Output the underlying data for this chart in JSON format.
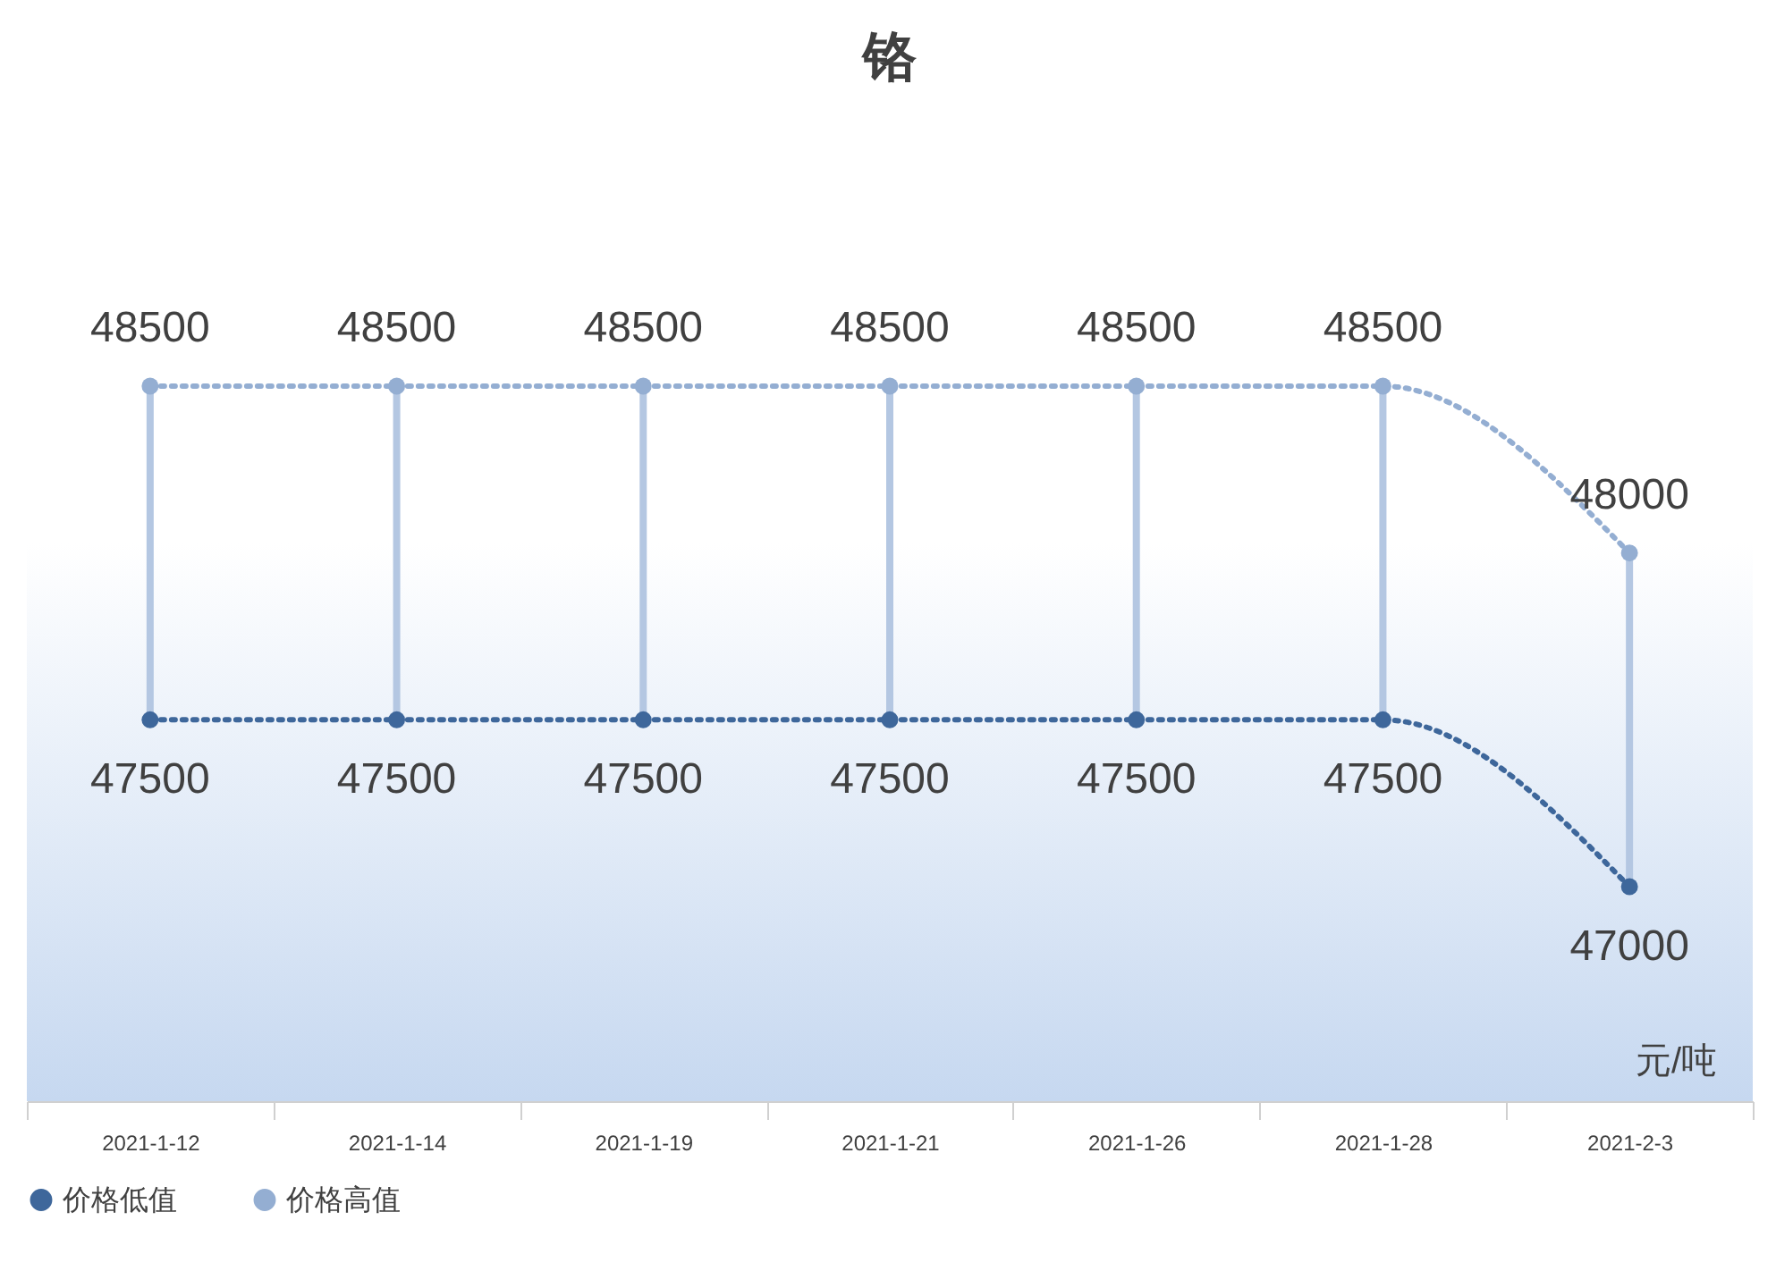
{
  "chart_data": {
    "type": "line",
    "title": "铬",
    "categories": [
      "2021-1-12",
      "2021-1-14",
      "2021-1-19",
      "2021-1-21",
      "2021-1-26",
      "2021-1-28",
      "2021-2-3"
    ],
    "series": [
      {
        "name": "价格低值",
        "color": "#3e679b",
        "values": [
          47500,
          47500,
          47500,
          47500,
          47500,
          47500,
          47000
        ]
      },
      {
        "name": "价格高值",
        "color": "#94aed2",
        "values": [
          48500,
          48500,
          48500,
          48500,
          48500,
          48500,
          48000
        ]
      }
    ],
    "annotations": [
      "元/吨"
    ],
    "data_labels": true,
    "legend": "bottom",
    "marker": "circle",
    "line_style": "dotted",
    "grid": false
  }
}
